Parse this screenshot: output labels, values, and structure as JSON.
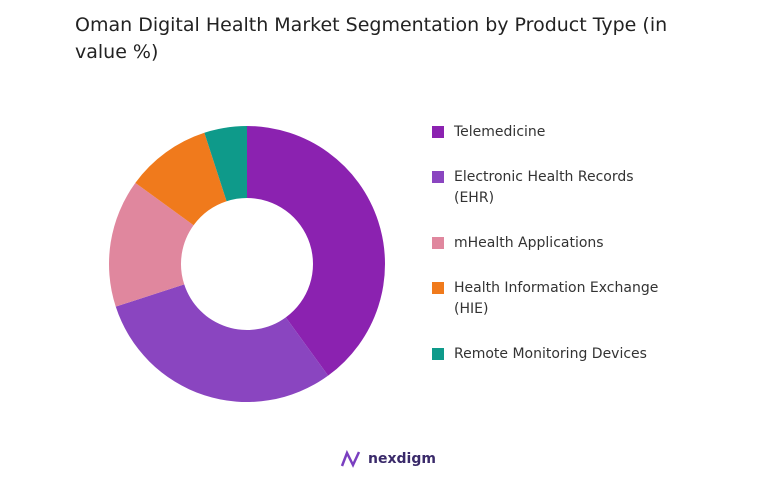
{
  "chart_data": {
    "type": "donut",
    "title": "Oman Digital Health Market Segmentation by Product Type (in value %)",
    "categories": [
      "Telemedicine",
      "Electronic Health Records (EHR)",
      "mHealth Applications",
      "Health Information Exchange (HIE)",
      "Remote Monitoring Devices"
    ],
    "values": [
      40,
      30,
      15,
      10,
      5
    ],
    "colors": [
      "#8b22b0",
      "#8a45c0",
      "#e0879e",
      "#f07a1c",
      "#0e9a8a"
    ]
  },
  "logo": "nexdigm"
}
